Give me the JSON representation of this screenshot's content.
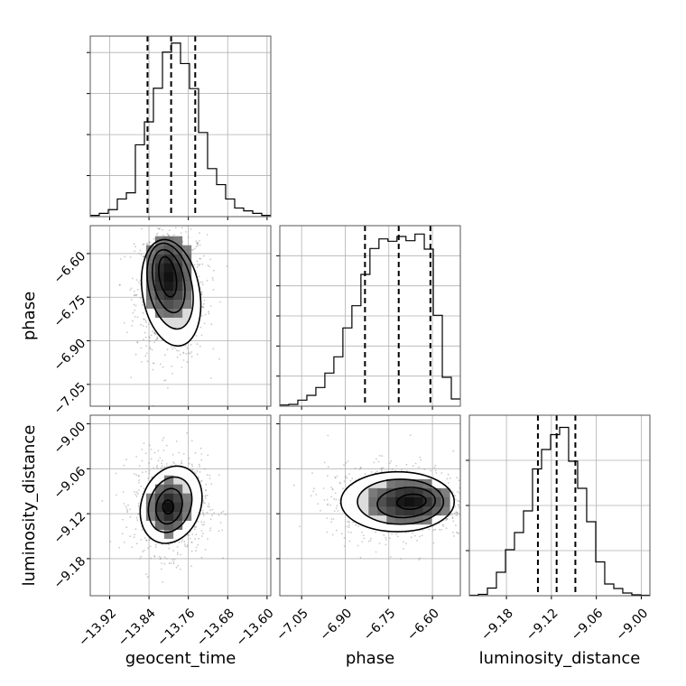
{
  "chart_data": {
    "type": "corner",
    "parameters": [
      "geocent_time",
      "phase",
      "luminosity_distance"
    ],
    "labels": {
      "geocent_time": "geocent_time",
      "phase": "phase",
      "luminosity_distance": "luminosity_distance"
    },
    "ranges": {
      "geocent_time": [
        -13.9594,
        -13.5924
      ],
      "phase": [
        -7.125,
        -6.504
      ],
      "luminosity_distance": [
        -9.2295,
        -8.9885
      ]
    },
    "ticks": {
      "geocent_time": [
        -13.92,
        -13.84,
        -13.76,
        -13.68,
        -13.6
      ],
      "phase": [
        -7.05,
        -6.9,
        -6.75,
        -6.6
      ],
      "luminosity_distance": [
        -9.18,
        -9.12,
        -9.06,
        -9.0
      ]
    },
    "tick_labels": {
      "geocent_time": [
        "−13.92",
        "−13.84",
        "−13.76",
        "−13.68",
        "−13.60"
      ],
      "phase": [
        "−7.05",
        "−6.90",
        "−6.75",
        "−6.60"
      ],
      "luminosity_distance": [
        "−9.18",
        "−9.12",
        "−9.06",
        "−9.00"
      ]
    },
    "quantiles": {
      "geocent_time": [
        -13.843,
        -13.795,
        -13.746
      ],
      "phase": [
        -6.832,
        -6.716,
        -6.607
      ],
      "luminosity_distance": [
        -9.138,
        -9.113,
        -9.088
      ]
    },
    "histograms": {
      "geocent_time": {
        "edges": [
          -13.9594,
          -13.9411,
          -13.9227,
          -13.9044,
          -13.886,
          -13.8677,
          -13.8493,
          -13.831,
          -13.8126,
          -13.7943,
          -13.7759,
          -13.7576,
          -13.7392,
          -13.7209,
          -13.7025,
          -13.6842,
          -13.6658,
          -13.6475,
          -13.6291,
          -13.6108,
          -13.5924
        ],
        "counts": [
          3,
          8,
          17,
          43,
          58,
          175,
          231,
          313,
          401,
          423,
          373,
          312,
          205,
          117,
          78,
          43,
          21,
          14,
          8,
          3
        ],
        "ymax": 440
      },
      "phase": {
        "edges": [
          -7.125,
          -7.094,
          -7.063,
          -7.032,
          -7.001,
          -6.97,
          -6.939,
          -6.908,
          -6.877,
          -6.846,
          -6.815,
          -6.784,
          -6.753,
          -6.722,
          -6.691,
          -6.66,
          -6.628,
          -6.597,
          -6.566,
          -6.535,
          -6.504
        ],
        "counts": [
          2,
          3,
          10,
          18,
          31,
          55,
          82,
          130,
          167,
          219,
          262,
          278,
          274,
          282,
          275,
          286,
          261,
          151,
          48,
          12
        ],
        "ymax": 300
      },
      "luminosity_distance": {
        "edges": [
          -9.2295,
          -9.2175,
          -9.2054,
          -9.1934,
          -9.1813,
          -9.1693,
          -9.1572,
          -9.1452,
          -9.1331,
          -9.1211,
          -9.109,
          -9.097,
          -9.0849,
          -9.0729,
          -9.0608,
          -9.0488,
          -9.0367,
          -9.0247,
          -9.0126,
          -9.0006,
          -8.9885
        ],
        "counts": [
          1,
          3,
          17,
          52,
          102,
          140,
          188,
          281,
          324,
          357,
          373,
          298,
          238,
          164,
          75,
          26,
          16,
          6,
          2,
          1
        ],
        "ymax": 400
      }
    },
    "contours": {
      "geocent_time|phase": [
        {
          "cx": -13.795,
          "cy": -6.735,
          "rx": 0.058,
          "ry": 0.185,
          "angle": -10
        },
        {
          "cx": -13.797,
          "cy": -6.712,
          "rx": 0.044,
          "ry": 0.15,
          "angle": -12
        },
        {
          "cx": -13.8,
          "cy": -6.695,
          "rx": 0.031,
          "ry": 0.11,
          "angle": -12
        },
        {
          "cx": -13.802,
          "cy": -6.68,
          "rx": 0.017,
          "ry": 0.07,
          "angle": -10
        }
      ],
      "geocent_time|luminosity_distance": [
        {
          "cx": -13.795,
          "cy": -9.108,
          "rx": 0.06,
          "ry": 0.053,
          "angle": 20
        },
        {
          "cx": -13.797,
          "cy": -9.108,
          "rx": 0.042,
          "ry": 0.038,
          "angle": 20
        },
        {
          "cx": -13.799,
          "cy": -9.11,
          "rx": 0.026,
          "ry": 0.024,
          "angle": 15
        },
        {
          "cx": -13.801,
          "cy": -9.111,
          "rx": 0.011,
          "ry": 0.009,
          "angle": 0
        }
      ],
      "phase|luminosity_distance": [
        {
          "cx": -6.72,
          "cy": -9.104,
          "rx": 0.195,
          "ry": 0.04,
          "angle": 0
        },
        {
          "cx": -6.71,
          "cy": -9.104,
          "rx": 0.148,
          "ry": 0.03,
          "angle": 0
        },
        {
          "cx": -6.69,
          "cy": -9.105,
          "rx": 0.1,
          "ry": 0.02,
          "angle": -5
        },
        {
          "cx": -6.672,
          "cy": -9.104,
          "rx": 0.05,
          "ry": 0.01,
          "angle": -5
        }
      ]
    },
    "density_centers": {
      "geocent_time|phase": {
        "x": -13.8,
        "y": -6.68,
        "sx": 0.03,
        "sy": 0.09
      },
      "geocent_time|luminosity_distance": {
        "x": -13.8,
        "y": -9.111,
        "sx": 0.025,
        "sy": 0.022
      },
      "phase|luminosity_distance": {
        "x": -6.68,
        "y": -9.104,
        "sx": 0.09,
        "sy": 0.018
      }
    },
    "grid": true,
    "colors": {
      "lines": "#000000",
      "grid": "#b0b0b0",
      "points": "#8a8a8a"
    }
  }
}
